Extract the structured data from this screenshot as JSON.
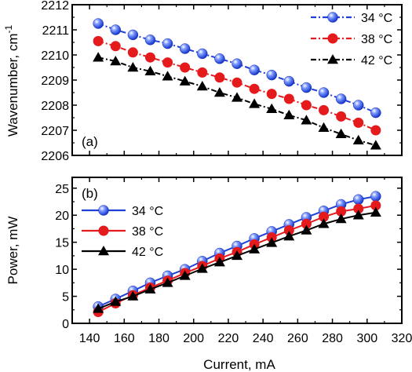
{
  "figure": {
    "xlabel": "Current, mA",
    "x_ticks": [
      "140",
      "160",
      "180",
      "200",
      "220",
      "240",
      "260",
      "280",
      "300",
      "320"
    ]
  },
  "colors": {
    "blue": "#1f3fd6",
    "red": "#e41a1c",
    "black": "#000000"
  },
  "chart_data": [
    {
      "type": "line",
      "panel_label": "(a)",
      "ylabel": "Wavenumber, cm",
      "ylabel_sup": "-1",
      "xlim": [
        130,
        320
      ],
      "ylim": [
        2206,
        2212
      ],
      "y_ticks": [
        "2206",
        "2207",
        "2208",
        "2209",
        "2210",
        "2211",
        "2212"
      ],
      "legend_position": "top-right",
      "line_style": "dash-dot",
      "x": [
        145,
        155,
        165,
        175,
        185,
        195,
        205,
        215,
        225,
        235,
        245,
        255,
        265,
        275,
        285,
        295,
        305
      ],
      "series": [
        {
          "name": "34 °C",
          "marker": "sphere",
          "color": "#1f3fd6",
          "values": [
            2211.25,
            2211.0,
            2210.8,
            2210.6,
            2210.45,
            2210.25,
            2210.05,
            2209.85,
            2209.65,
            2209.4,
            2209.2,
            2208.95,
            2208.7,
            2208.5,
            2208.25,
            2208.0,
            2207.7
          ]
        },
        {
          "name": "38 °C",
          "marker": "circle",
          "color": "#e41a1c",
          "values": [
            2210.55,
            2210.35,
            2210.1,
            2209.9,
            2209.7,
            2209.5,
            2209.3,
            2209.1,
            2208.9,
            2208.65,
            2208.45,
            2208.25,
            2208.0,
            2207.8,
            2207.55,
            2207.3,
            2207.0
          ]
        },
        {
          "name": "42 °C",
          "marker": "triangle",
          "color": "#000000",
          "values": [
            2209.9,
            2209.75,
            2209.5,
            2209.35,
            2209.15,
            2208.95,
            2208.75,
            2208.5,
            2208.3,
            2208.05,
            2207.85,
            2207.6,
            2207.4,
            2207.1,
            2206.85,
            2206.6,
            2206.4
          ]
        }
      ]
    },
    {
      "type": "line",
      "panel_label": "(b)",
      "ylabel": "Power, mW",
      "xlim": [
        130,
        320
      ],
      "ylim": [
        0,
        27
      ],
      "y_ticks": [
        "0",
        "5",
        "10",
        "15",
        "20",
        "25"
      ],
      "legend_position": "top-left",
      "line_style": "solid",
      "x": [
        145,
        155,
        165,
        175,
        185,
        195,
        205,
        215,
        225,
        235,
        245,
        255,
        265,
        275,
        285,
        295,
        305
      ],
      "series": [
        {
          "name": "34 °C",
          "marker": "sphere",
          "color": "#1f3fd6",
          "values": [
            3.1,
            4.5,
            6.0,
            7.5,
            8.8,
            10.0,
            11.5,
            13.0,
            14.3,
            15.7,
            17.0,
            18.3,
            19.6,
            20.8,
            22.0,
            22.9,
            23.5
          ]
        },
        {
          "name": "38 °C",
          "marker": "circle",
          "color": "#e41a1c",
          "values": [
            2.1,
            3.7,
            5.2,
            6.6,
            7.9,
            9.3,
            10.6,
            12.0,
            13.2,
            14.6,
            15.9,
            17.2,
            18.4,
            19.7,
            20.7,
            21.2,
            21.8
          ]
        },
        {
          "name": "42 °C",
          "marker": "triangle",
          "color": "#000000",
          "values": [
            2.7,
            4.0,
            5.0,
            6.3,
            7.5,
            8.8,
            10.1,
            11.3,
            12.5,
            13.7,
            14.9,
            16.1,
            17.2,
            18.4,
            19.3,
            20.0,
            20.5
          ]
        }
      ]
    }
  ]
}
